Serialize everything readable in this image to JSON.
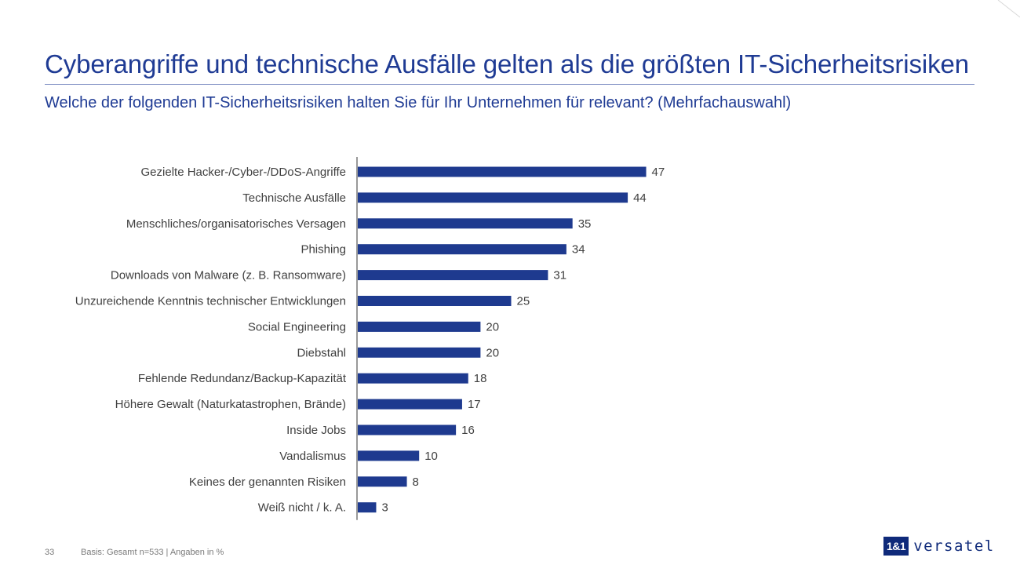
{
  "header": {
    "title": "Cyberangriffe und technische Ausfälle gelten als die größten IT-Sicherheitsrisiken",
    "subtitle": "Welche der folgenden IT-Sicherheitsrisiken halten Sie für Ihr Unternehmen für relevant? (Mehrfachauswahl)"
  },
  "footer": {
    "page_number": "33",
    "basis": "Basis: Gesamt n=533 | Angaben in %"
  },
  "logo": {
    "mark": "1&1",
    "word": "versatel"
  },
  "colors": {
    "accent": "#1f3b94",
    "bar": "#1e3a8f",
    "label": "#404040"
  },
  "chart_data": {
    "type": "bar",
    "orientation": "horizontal",
    "categories": [
      "Gezielte Hacker-/Cyber-/DDoS-Angriffe",
      "Technische Ausfälle",
      "Menschliches/organisatorisches Versagen",
      "Phishing",
      "Downloads von Malware (z. B. Ransomware)",
      "Unzureichende Kenntnis technischer Entwicklungen",
      "Social Engineering",
      "Diebstahl",
      "Fehlende Redundanz/Backup-Kapazität",
      "Höhere Gewalt (Naturkatastrophen, Brände)",
      "Inside Jobs",
      "Vandalismus",
      "Keines der genannten Risiken",
      "Weiß nicht / k. A."
    ],
    "values": [
      47,
      44,
      35,
      34,
      31,
      25,
      20,
      20,
      18,
      17,
      16,
      10,
      8,
      3
    ],
    "xlim": [
      0,
      50
    ],
    "grid": false,
    "data_labels": true
  }
}
